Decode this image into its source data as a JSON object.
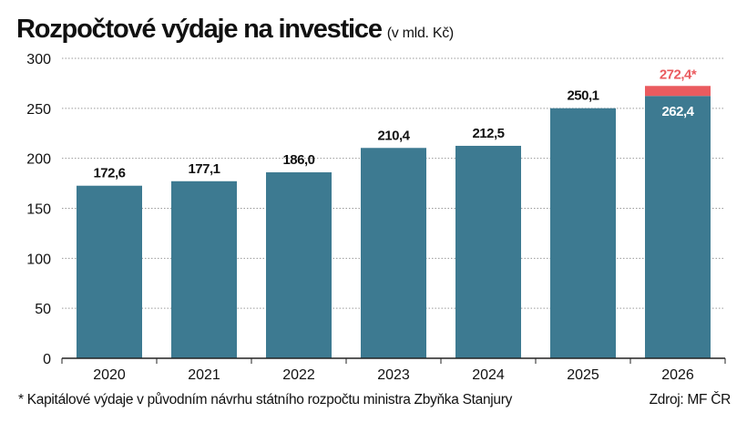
{
  "chart_data": {
    "type": "bar",
    "title": "Rozpočtové výdaje na investice",
    "unit_label": "(v mld. Kč)",
    "xlabel": "",
    "ylabel": "",
    "ylim": [
      0,
      300
    ],
    "yticks": [
      0,
      50,
      100,
      150,
      200,
      250,
      300
    ],
    "grid": true,
    "categories": [
      "2020",
      "2021",
      "2022",
      "2023",
      "2024",
      "2025",
      "2026"
    ],
    "values": [
      172.6,
      177.1,
      186.0,
      210.4,
      212.5,
      250.1,
      262.4
    ],
    "value_labels": [
      "172,6",
      "177,1",
      "186,0",
      "210,4",
      "212,5",
      "250,1",
      "262,4"
    ],
    "extra_segment": {
      "category": "2026",
      "base": 262.4,
      "total": 272.4,
      "label": "272,4*"
    },
    "colors": {
      "bar": "#3d7a91",
      "extra": "#ea5b5f",
      "extra_text": "#ea5b5f",
      "inside_label": "#ffffff",
      "grid": "#9a9a9a",
      "axis": "#222222"
    }
  },
  "footnote": "* Kapitálové výdaje v původním návrhu státního rozpočtu ministra Zbyňka Stanjury",
  "source": "Zdroj: MF ČR"
}
